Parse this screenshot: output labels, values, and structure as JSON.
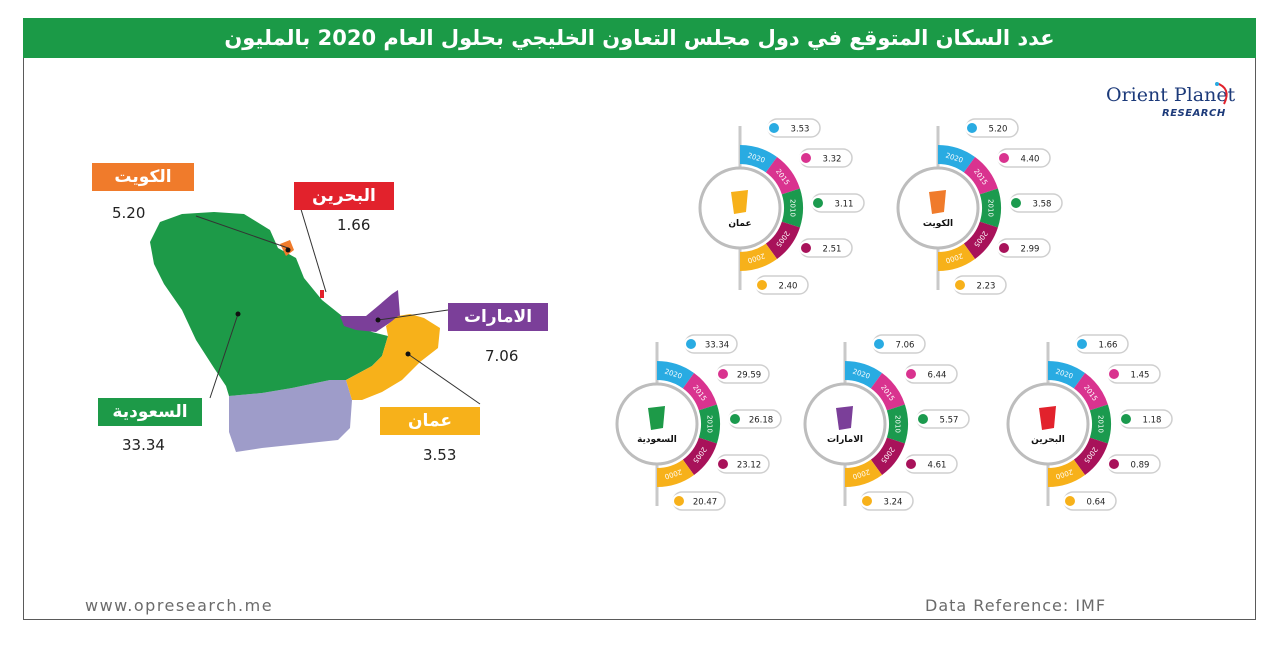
{
  "title": "عدد السكان المتوقع في دول مجلس التعاون الخليجي بحلول العام 2020 بالمليون",
  "brand": {
    "name": "Orient Planet",
    "sub": "RESEARCH"
  },
  "footer": {
    "website": "www.opresearch.me",
    "reference": "Data Reference: IMF"
  },
  "colors": {
    "header_green": "#1b9a47",
    "kuwait": "#f07b2b",
    "bahrain": "#e2222c",
    "uae": "#7b3f99",
    "oman": "#f7b11a",
    "saudi": "#1d9a48",
    "yemen": "#9e9cc9",
    "ring_2020": "#29abe2",
    "ring_2015": "#d9338f",
    "ring_2010": "#1b9a4e",
    "ring_2005": "#a8125a",
    "ring_2000": "#f7b11a"
  },
  "map": {
    "labels": {
      "kuwait": {
        "name": "الكويت",
        "value": "5.20"
      },
      "bahrain": {
        "name": "البحرين",
        "value": "1.66"
      },
      "uae": {
        "name": "الامارات",
        "value": "7.06"
      },
      "oman": {
        "name": "عمان",
        "value": "3.53"
      },
      "saudi": {
        "name": "السعودية",
        "value": "33.34"
      }
    }
  },
  "chart_data": {
    "type": "radial",
    "title": "عدد السكان المتوقع في دول مجلس التعاون الخليجي بحلول العام 2020 بالمليون",
    "categories": [
      "2020",
      "2015",
      "2010",
      "2005",
      "2000"
    ],
    "series": [
      {
        "name": "الكويت",
        "values": [
          5.2,
          4.4,
          3.58,
          2.99,
          2.23
        ]
      },
      {
        "name": "عمان",
        "values": [
          3.53,
          3.32,
          3.11,
          2.51,
          2.4
        ]
      },
      {
        "name": "البحرين",
        "values": [
          1.66,
          1.45,
          1.18,
          0.89,
          0.64
        ]
      },
      {
        "name": "الامارات",
        "values": [
          7.06,
          6.44,
          5.57,
          4.61,
          3.24
        ]
      },
      {
        "name": "السعودية",
        "values": [
          33.34,
          29.59,
          26.18,
          23.12,
          20.47
        ]
      }
    ],
    "value_labels": [
      [
        "5.20",
        "4.40",
        "3.58",
        "2.99",
        "2.23"
      ],
      [
        "3.53",
        "3.32",
        "3.11",
        "2.51",
        "2.40"
      ],
      [
        "1.66",
        "1.45",
        "1.18",
        "0.89",
        "0.64"
      ],
      [
        "7.06",
        "6.44",
        "5.57",
        "4.61",
        "3.24"
      ],
      [
        "33.34",
        "29.59",
        "26.18",
        "23.12",
        "20.47"
      ]
    ]
  }
}
